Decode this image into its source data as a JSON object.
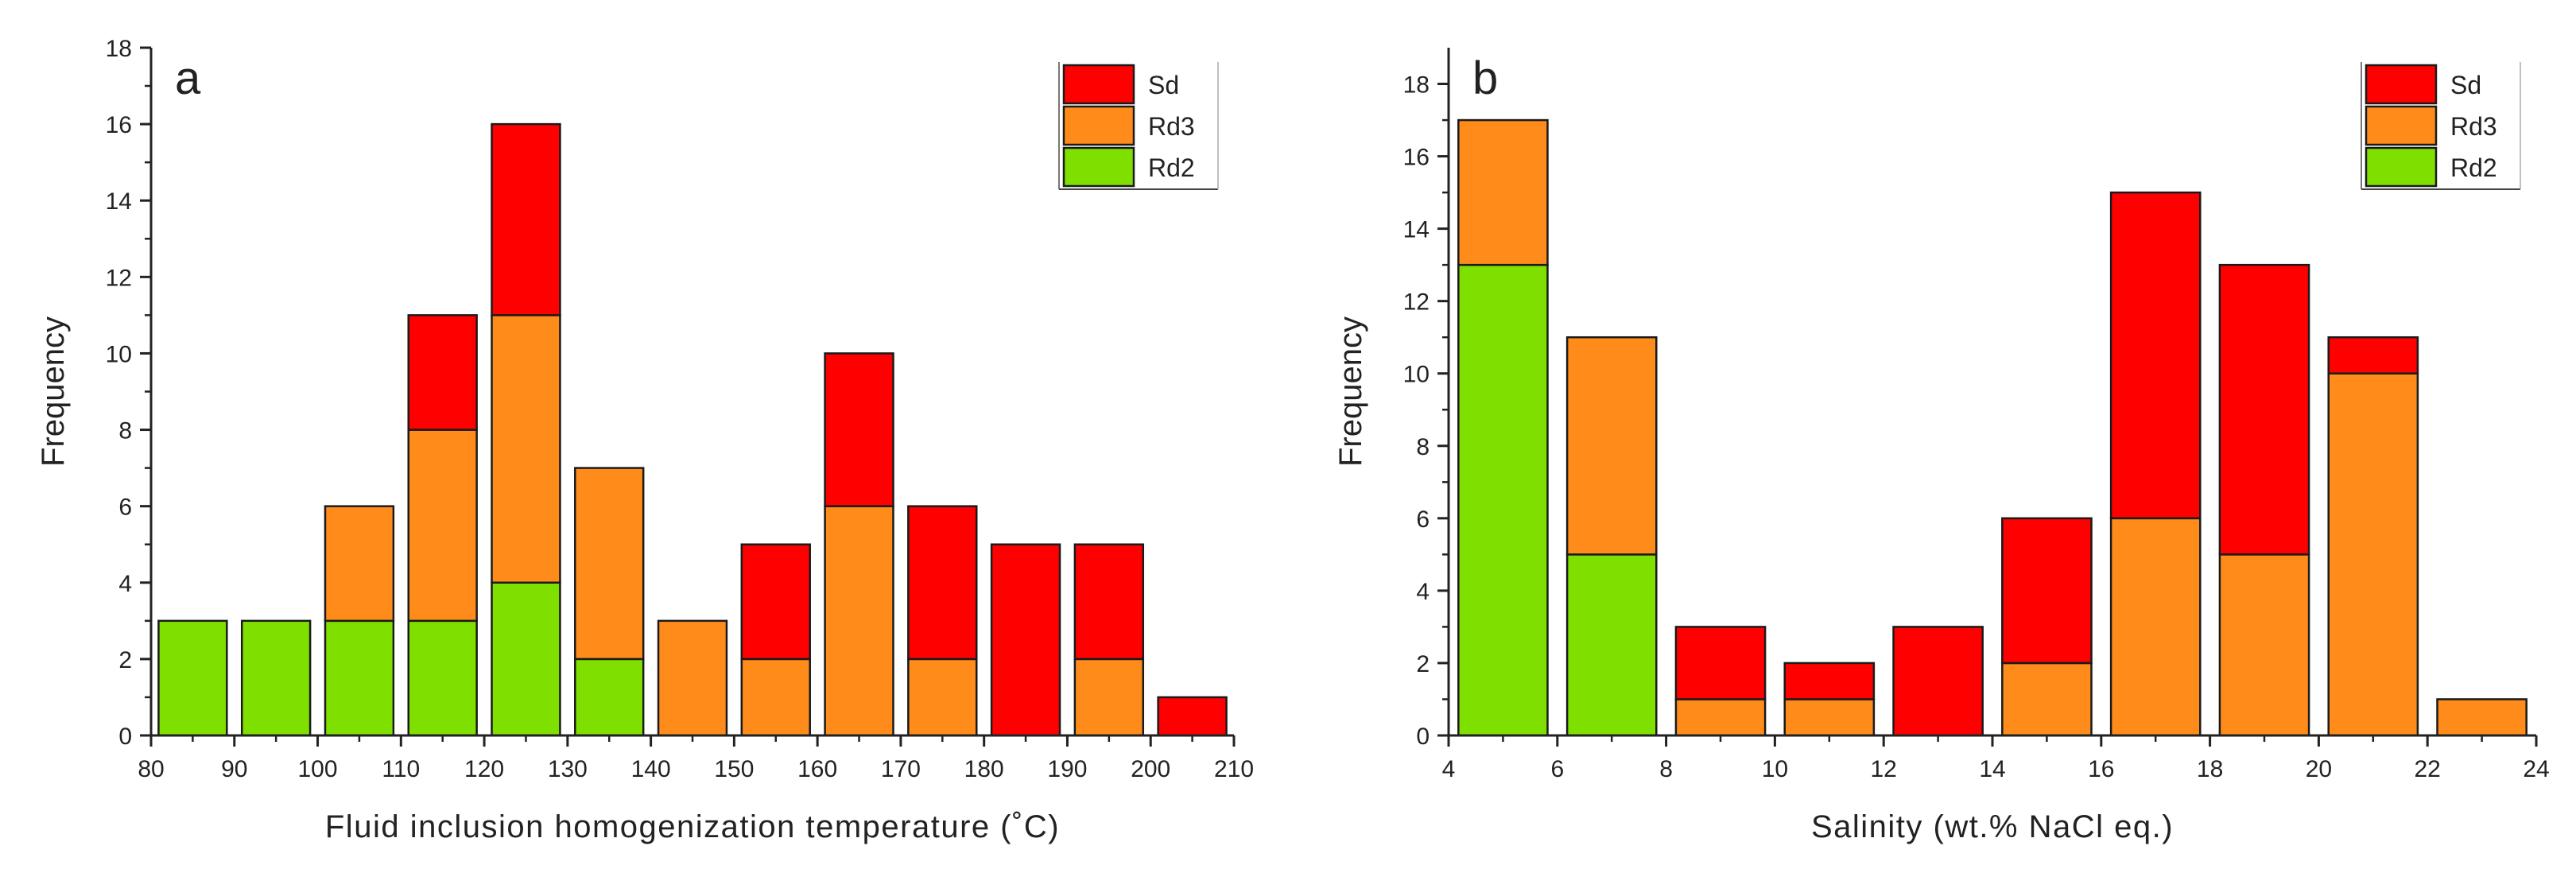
{
  "colors": {
    "Sd": "#ff0000",
    "Rd3": "#ff8c1a",
    "Rd2": "#7fe000",
    "axis": "#222222"
  },
  "chart_data": [
    {
      "type": "bar",
      "stacked": true,
      "panel_label": "a",
      "xlabel": "Fluid inclusion homogenization temperature (˚C)",
      "ylabel": "Frequency",
      "xlim": [
        80,
        210
      ],
      "ylim": [
        0,
        18
      ],
      "xticks": [
        "80",
        "90",
        "100",
        "110",
        "120",
        "130",
        "140",
        "150",
        "160",
        "170",
        "180",
        "190",
        "200",
        "210"
      ],
      "yticks": [
        "0",
        "2",
        "4",
        "6",
        "8",
        "10",
        "12",
        "14",
        "16",
        "18"
      ],
      "bin_width": 10,
      "categories": [
        "80-90",
        "90-100",
        "100-110",
        "110-120",
        "120-130",
        "130-140",
        "140-150",
        "150-160",
        "160-170",
        "170-180",
        "180-190",
        "190-200",
        "200-210"
      ],
      "bin_starts": [
        80,
        90,
        100,
        110,
        120,
        130,
        140,
        150,
        160,
        170,
        180,
        190,
        200
      ],
      "series": [
        {
          "name": "Rd2",
          "values": [
            3,
            3,
            3,
            3,
            4,
            2,
            0,
            0,
            0,
            0,
            0,
            0,
            0
          ]
        },
        {
          "name": "Rd3",
          "values": [
            0,
            0,
            3,
            5,
            7,
            5,
            3,
            2,
            6,
            2,
            0,
            2,
            0
          ]
        },
        {
          "name": "Sd",
          "values": [
            0,
            0,
            0,
            3,
            5,
            0,
            0,
            3,
            4,
            4,
            5,
            3,
            1
          ]
        }
      ],
      "legend": {
        "position": "top-right",
        "entries": [
          "Sd",
          "Rd3",
          "Rd2"
        ]
      }
    },
    {
      "type": "bar",
      "stacked": true,
      "panel_label": "b",
      "xlabel": "Salinity (wt.% NaCl eq.)",
      "ylabel": "Frequency",
      "xlim": [
        4,
        24
      ],
      "ylim": [
        0,
        19
      ],
      "xticks": [
        "4",
        "6",
        "8",
        "10",
        "12",
        "14",
        "16",
        "18",
        "20",
        "22",
        "24"
      ],
      "yticks": [
        "0",
        "2",
        "4",
        "6",
        "8",
        "10",
        "12",
        "14",
        "16",
        "18"
      ],
      "bin_width": 2,
      "categories": [
        "4-6",
        "6-8",
        "8-10",
        "10-12",
        "12-14",
        "14-16",
        "16-18",
        "18-20",
        "20-22",
        "22-24"
      ],
      "bin_starts": [
        4,
        6,
        8,
        10,
        12,
        14,
        16,
        18,
        20,
        22
      ],
      "series": [
        {
          "name": "Rd2",
          "values": [
            13,
            5,
            0,
            0,
            0,
            0,
            0,
            0,
            0,
            0
          ]
        },
        {
          "name": "Rd3",
          "values": [
            4,
            6,
            1,
            1,
            0,
            2,
            6,
            5,
            10,
            1
          ]
        },
        {
          "name": "Sd",
          "values": [
            0,
            0,
            2,
            1,
            3,
            4,
            9,
            8,
            1,
            0
          ]
        }
      ],
      "legend": {
        "position": "top-right",
        "entries": [
          "Sd",
          "Rd3",
          "Rd2"
        ]
      }
    }
  ]
}
